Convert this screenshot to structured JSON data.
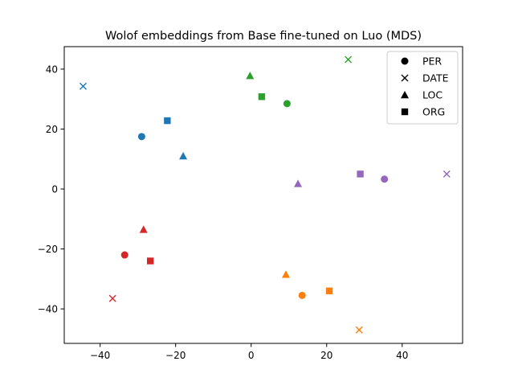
{
  "chart_data": {
    "type": "scatter",
    "title": "Wolof embeddings from Base fine-tuned on Luo (MDS)",
    "xlabel": "",
    "ylabel": "",
    "xlim": [
      -49.5,
      56
    ],
    "ylim": [
      -51.5,
      47.5
    ],
    "xticks": [
      -40,
      -20,
      0,
      20,
      40
    ],
    "yticks": [
      -40,
      -20,
      0,
      20,
      40
    ],
    "xtick_labels": [
      "−40",
      "−20",
      "0",
      "20",
      "40"
    ],
    "ytick_labels": [
      "−40",
      "−20",
      "0",
      "20",
      "40"
    ],
    "grid": false,
    "legend_position": "top-right",
    "legend": [
      {
        "label": "PER",
        "marker": "circle"
      },
      {
        "label": "DATE",
        "marker": "x"
      },
      {
        "label": "LOC",
        "marker": "triangle"
      },
      {
        "label": "ORG",
        "marker": "square"
      }
    ],
    "groups": [
      {
        "color": "#1f77b4",
        "points": [
          {
            "marker": "circle",
            "x": -29,
            "y": 17.5
          },
          {
            "marker": "x",
            "x": -44.5,
            "y": 34.3
          },
          {
            "marker": "triangle",
            "x": -18,
            "y": 11
          },
          {
            "marker": "square",
            "x": -22.2,
            "y": 22.8
          }
        ]
      },
      {
        "color": "#ff7f0e",
        "points": [
          {
            "marker": "circle",
            "x": 13.5,
            "y": -35.5
          },
          {
            "marker": "x",
            "x": 28.6,
            "y": -47
          },
          {
            "marker": "triangle",
            "x": 9.2,
            "y": -28.5
          },
          {
            "marker": "square",
            "x": 20.7,
            "y": -34
          }
        ]
      },
      {
        "color": "#2ca02c",
        "points": [
          {
            "marker": "circle",
            "x": 9.5,
            "y": 28.5
          },
          {
            "marker": "x",
            "x": 25.7,
            "y": 43.2
          },
          {
            "marker": "triangle",
            "x": -0.3,
            "y": 37.8
          },
          {
            "marker": "square",
            "x": 2.8,
            "y": 30.8
          }
        ]
      },
      {
        "color": "#d62728",
        "points": [
          {
            "marker": "circle",
            "x": -33.5,
            "y": -22
          },
          {
            "marker": "x",
            "x": -36.7,
            "y": -36.5
          },
          {
            "marker": "triangle",
            "x": -28.5,
            "y": -13.5
          },
          {
            "marker": "square",
            "x": -26.7,
            "y": -24
          }
        ]
      },
      {
        "color": "#9467bd",
        "points": [
          {
            "marker": "circle",
            "x": 35.3,
            "y": 3.3
          },
          {
            "marker": "x",
            "x": 51.8,
            "y": 5
          },
          {
            "marker": "triangle",
            "x": 12.4,
            "y": 1.8
          },
          {
            "marker": "square",
            "x": 28.9,
            "y": 5
          }
        ]
      }
    ]
  }
}
